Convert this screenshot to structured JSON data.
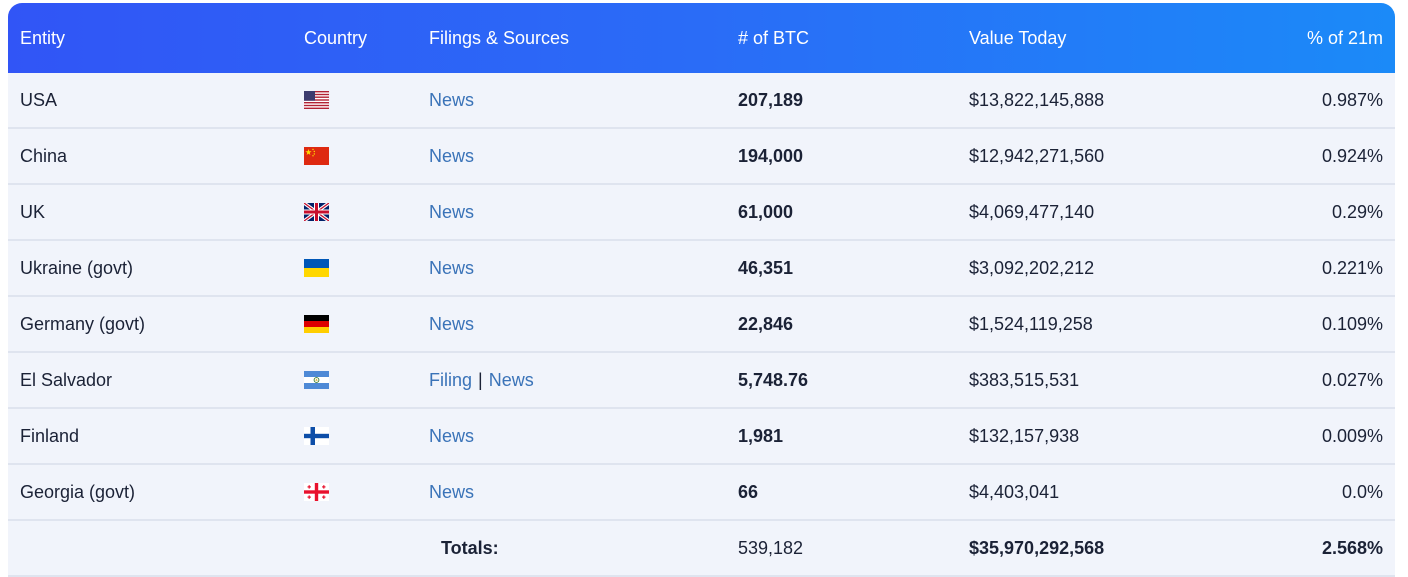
{
  "header": {
    "entity": "Entity",
    "country": "Country",
    "filings": "Filings & Sources",
    "btc": "# of BTC",
    "value": "Value Today",
    "pct": "% of 21m"
  },
  "rows": [
    {
      "entity": "USA",
      "flag": "usa-flag-icon",
      "links": [
        "News"
      ],
      "btc": "207,189",
      "value": "$13,822,145,888",
      "pct": "0.987%"
    },
    {
      "entity": "China",
      "flag": "china-flag-icon",
      "links": [
        "News"
      ],
      "btc": "194,000",
      "value": "$12,942,271,560",
      "pct": "0.924%"
    },
    {
      "entity": "UK",
      "flag": "uk-flag-icon",
      "links": [
        "News"
      ],
      "btc": "61,000",
      "value": "$4,069,477,140",
      "pct": "0.29%"
    },
    {
      "entity": "Ukraine (govt)",
      "flag": "ukraine-flag-icon",
      "links": [
        "News"
      ],
      "btc": "46,351",
      "value": "$3,092,202,212",
      "pct": "0.221%"
    },
    {
      "entity": "Germany (govt)",
      "flag": "germany-flag-icon",
      "links": [
        "News"
      ],
      "btc": "22,846",
      "value": "$1,524,119,258",
      "pct": "0.109%"
    },
    {
      "entity": "El Salvador",
      "flag": "el-salvador-flag-icon",
      "links": [
        "Filing",
        "News"
      ],
      "btc": "5,748.76",
      "value": "$383,515,531",
      "pct": "0.027%"
    },
    {
      "entity": "Finland",
      "flag": "finland-flag-icon",
      "links": [
        "News"
      ],
      "btc": "1,981",
      "value": "$132,157,938",
      "pct": "0.009%"
    },
    {
      "entity": "Georgia (govt)",
      "flag": "georgia-flag-icon",
      "links": [
        "News"
      ],
      "btc": "66",
      "value": "$4,403,041",
      "pct": "0.0%"
    }
  ],
  "link_separator": "|",
  "totals": {
    "label": "Totals:",
    "btc": "539,182",
    "value": "$35,970,292,568",
    "pct": "2.568%"
  },
  "colors": {
    "header_start": "#3155f6",
    "header_end": "#1b8af8",
    "link": "#3a73b8",
    "row_bg": "#f1f4fb"
  }
}
